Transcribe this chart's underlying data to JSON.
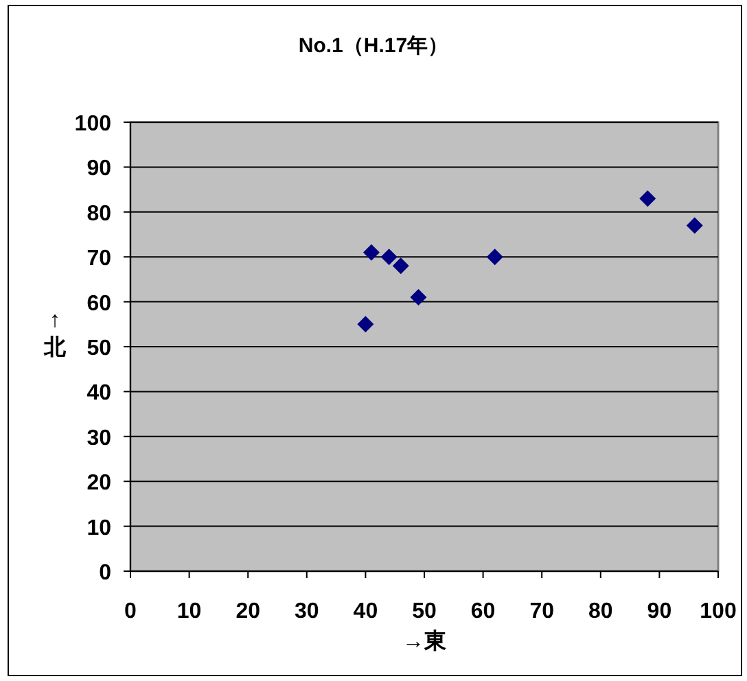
{
  "chart_data": {
    "type": "scatter",
    "title": "No.1（H.17年）",
    "xlabel": "→東",
    "ylabel": "↑北",
    "x": [
      40,
      41,
      44,
      46,
      49,
      62,
      88,
      96
    ],
    "series": [
      {
        "color": "#000080",
        "values": [
          55,
          71,
          70,
          68,
          61,
          70,
          83,
          77
        ]
      }
    ],
    "xlim": [
      0,
      100
    ],
    "ylim": [
      0,
      100
    ],
    "xticks": [
      0,
      10,
      20,
      30,
      40,
      50,
      60,
      70,
      80,
      90,
      100
    ],
    "yticks": [
      0,
      10,
      20,
      30,
      40,
      50,
      60,
      70,
      80,
      90,
      100
    ],
    "grid": "y",
    "marker": "diamond"
  }
}
